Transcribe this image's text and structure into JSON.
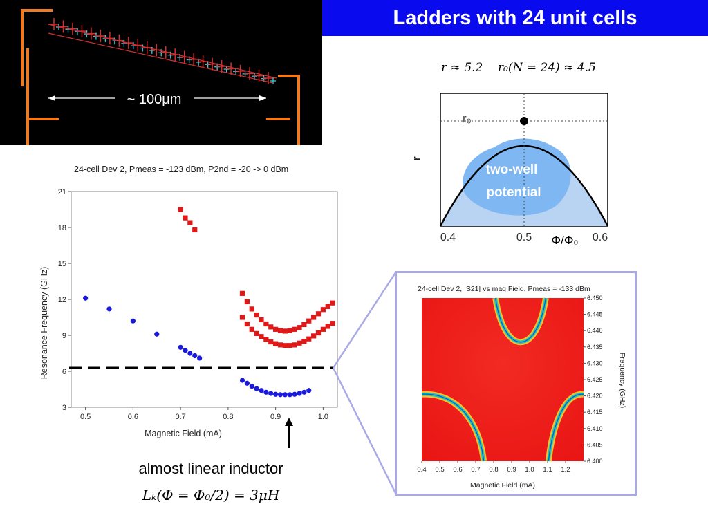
{
  "header": {
    "title": "Ladders with 24 unit cells"
  },
  "device_image": {
    "scale_label": "~ 100μm"
  },
  "potential_plot": {
    "formula_r": "r ≈ 5.2",
    "formula_r0": "r₀(N = 24) ≈ 4.5",
    "ylabel": "r",
    "xlabel": "Φ/Φ₀",
    "peak_label": "r₀",
    "region_label_line1": "two-well",
    "region_label_line2": "potential",
    "xticks": [
      "0.4",
      "0.5",
      "0.6"
    ],
    "colors": {
      "fill": "#b9d3f3",
      "blob": "#7eb7f2",
      "curve": "#000000"
    }
  },
  "chart_data": [
    {
      "type": "scatter",
      "title": "24-cell Dev 2, Pmeas = -123 dBm, P2nd = -20 -> 0 dBm",
      "xlabel": "Magnetic Field (mA)",
      "ylabel": "Resonance Frequency (GHz)",
      "xlim": [
        0.47,
        1.03
      ],
      "ylim": [
        3,
        21
      ],
      "xticks": [
        "0.5",
        "0.6",
        "0.7",
        "0.8",
        "0.9",
        "1.0"
      ],
      "yticks": [
        "3",
        "6",
        "9",
        "12",
        "15",
        "18",
        "21"
      ],
      "reference_line_y": 6.4,
      "series": [
        {
          "color": "#1a1adc",
          "marker": "circle",
          "x": [
            0.5,
            0.55,
            0.6,
            0.65,
            0.7,
            0.71,
            0.72,
            0.73,
            0.74,
            0.83,
            0.84,
            0.85,
            0.86,
            0.87,
            0.88,
            0.89,
            0.9,
            0.91,
            0.92,
            0.93,
            0.94,
            0.95,
            0.96,
            0.97
          ],
          "y": [
            12.1,
            11.2,
            10.2,
            9.1,
            8.0,
            7.75,
            7.5,
            7.3,
            7.1,
            5.25,
            5.0,
            4.75,
            4.55,
            4.4,
            4.25,
            4.15,
            4.08,
            4.05,
            4.05,
            4.05,
            4.08,
            4.15,
            4.25,
            4.4
          ]
        },
        {
          "color": "#e01818",
          "marker": "square",
          "x": [
            0.7,
            0.71,
            0.72,
            0.73,
            0.83,
            0.84,
            0.85,
            0.86,
            0.87,
            0.88,
            0.89,
            0.9,
            0.91,
            0.92,
            0.93,
            0.94,
            0.95,
            0.96,
            0.97,
            0.98,
            0.99,
            1.0,
            1.01,
            1.02
          ],
          "y": [
            19.5,
            18.8,
            18.4,
            17.8,
            12.5,
            11.8,
            11.2,
            10.7,
            10.3,
            9.95,
            9.7,
            9.5,
            9.4,
            9.35,
            9.4,
            9.5,
            9.65,
            9.9,
            10.2,
            10.5,
            10.8,
            11.15,
            11.4,
            11.7
          ]
        },
        {
          "color": "#e01818",
          "marker": "square",
          "x": [
            0.83,
            0.84,
            0.85,
            0.86,
            0.87,
            0.88,
            0.89,
            0.9,
            0.91,
            0.92,
            0.93,
            0.94,
            0.95,
            0.96,
            0.97,
            0.98,
            0.99,
            1.0,
            1.01,
            1.02
          ],
          "y": [
            10.5,
            9.95,
            9.5,
            9.15,
            8.9,
            8.65,
            8.45,
            8.3,
            8.2,
            8.15,
            8.15,
            8.2,
            8.35,
            8.5,
            8.7,
            8.95,
            9.2,
            9.5,
            9.75,
            10.0
          ]
        }
      ]
    },
    {
      "type": "heatmap",
      "title": "24-cell Dev 2, |S21| vs mag Field, Pmeas = -133 dBm",
      "xlabel": "Magnetic Field (mA)",
      "ylabel": "Frequency (GHz)",
      "xlim": [
        0.4,
        1.3
      ],
      "ylim": [
        6.4,
        6.45
      ],
      "xticks": [
        "0.4",
        "0.5",
        "0.6",
        "0.7",
        "0.8",
        "0.9",
        "1.0",
        "1.1",
        "1.2"
      ],
      "yticks": [
        "6.400",
        "6.405",
        "6.410",
        "6.415",
        "6.420",
        "6.425",
        "6.430",
        "6.435",
        "6.440",
        "6.445",
        "6.450"
      ],
      "colors": {
        "background": "#ee1c1c",
        "trace": "#18c8b8",
        "halo": "#f6ea30"
      }
    }
  ],
  "annotation": {
    "caption": "almost  linear inductor",
    "lk_formula": "Lₖ(Φ = Φ₀/2) = 3μH"
  }
}
